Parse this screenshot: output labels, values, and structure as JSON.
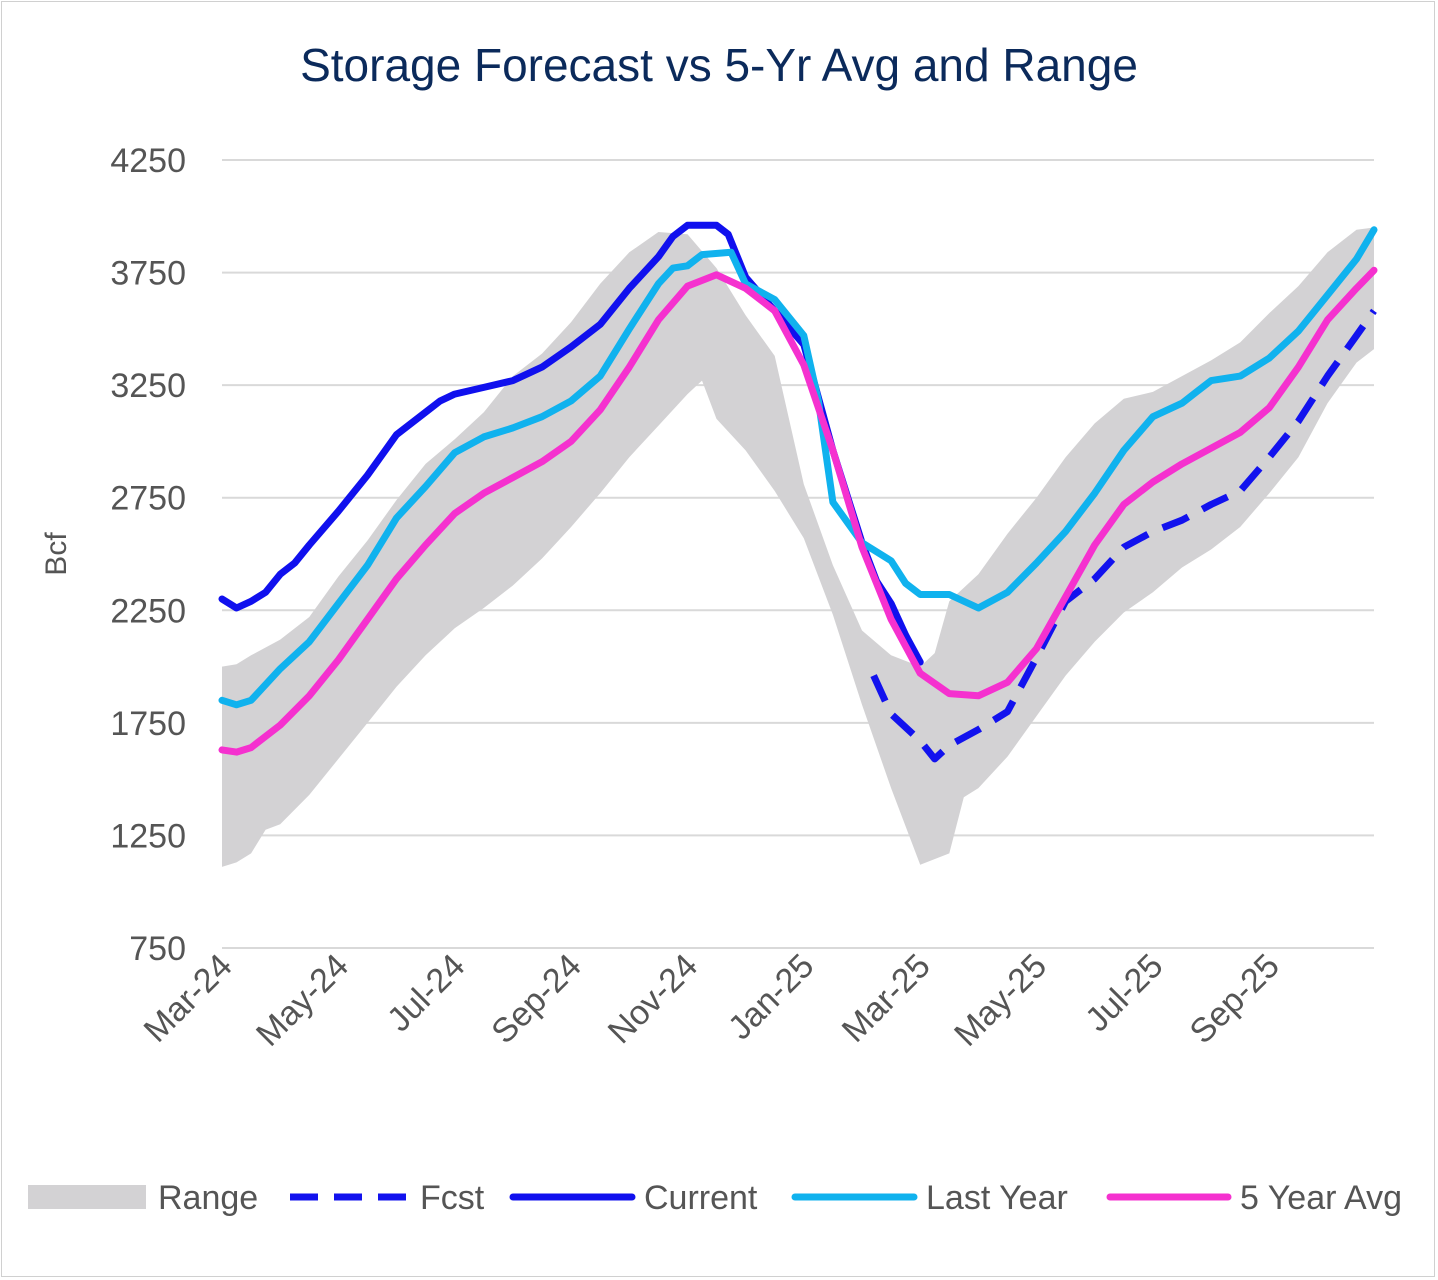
{
  "chart_data": {
    "type": "line",
    "title": "Storage Forecast vs 5-Yr Avg and Range",
    "xlabel": "",
    "ylabel": "Bcf",
    "ylim": [
      750,
      4250
    ],
    "yticks": [
      4250,
      3750,
      3250,
      2750,
      2250,
      1750,
      1250,
      750
    ],
    "x_range": [
      0,
      19.8
    ],
    "xticks": [
      {
        "label": "Mar-24",
        "x": 0
      },
      {
        "label": "May-24",
        "x": 2
      },
      {
        "label": "Jul-24",
        "x": 4
      },
      {
        "label": "Sep-24",
        "x": 6
      },
      {
        "label": "Nov-24",
        "x": 8
      },
      {
        "label": "Jan-25",
        "x": 10
      },
      {
        "label": "Mar-25",
        "x": 12
      },
      {
        "label": "May-25",
        "x": 14
      },
      {
        "label": "Jul-25",
        "x": 16
      },
      {
        "label": "Sep-25",
        "x": 18
      }
    ],
    "grid": true,
    "legend_position": "bottom",
    "range": {
      "name": "Range",
      "color": "#d3d2d4",
      "upper": [
        [
          0,
          2000
        ],
        [
          0.25,
          2010
        ],
        [
          0.5,
          2050
        ],
        [
          1,
          2120
        ],
        [
          1.5,
          2220
        ],
        [
          2,
          2400
        ],
        [
          2.5,
          2560
        ],
        [
          3,
          2740
        ],
        [
          3.5,
          2900
        ],
        [
          4,
          3010
        ],
        [
          4.5,
          3130
        ],
        [
          5,
          3290
        ],
        [
          5.5,
          3390
        ],
        [
          6,
          3530
        ],
        [
          6.5,
          3700
        ],
        [
          7,
          3840
        ],
        [
          7.5,
          3930
        ],
        [
          8,
          3920
        ],
        [
          8.5,
          3770
        ],
        [
          9,
          3560
        ],
        [
          9.5,
          3380
        ],
        [
          10,
          2810
        ],
        [
          10.5,
          2450
        ],
        [
          11,
          2160
        ],
        [
          11.5,
          2050
        ],
        [
          12,
          2000
        ],
        [
          12.25,
          2060
        ],
        [
          12.5,
          2290
        ],
        [
          13,
          2410
        ],
        [
          13.5,
          2590
        ],
        [
          14,
          2750
        ],
        [
          14.5,
          2930
        ],
        [
          15,
          3080
        ],
        [
          15.5,
          3190
        ],
        [
          16,
          3220
        ],
        [
          16.5,
          3290
        ],
        [
          17,
          3360
        ],
        [
          17.5,
          3440
        ],
        [
          18,
          3570
        ],
        [
          18.5,
          3690
        ],
        [
          19,
          3840
        ],
        [
          19.5,
          3940
        ],
        [
          19.8,
          3950
        ]
      ],
      "lower": [
        [
          0,
          1110
        ],
        [
          0.25,
          1130
        ],
        [
          0.5,
          1170
        ],
        [
          0.75,
          1275
        ],
        [
          1,
          1300
        ],
        [
          1.5,
          1430
        ],
        [
          2,
          1590
        ],
        [
          2.5,
          1750
        ],
        [
          3,
          1910
        ],
        [
          3.5,
          2050
        ],
        [
          4,
          2170
        ],
        [
          4.5,
          2260
        ],
        [
          5,
          2360
        ],
        [
          5.5,
          2480
        ],
        [
          6,
          2620
        ],
        [
          6.5,
          2770
        ],
        [
          7,
          2930
        ],
        [
          7.5,
          3070
        ],
        [
          8,
          3210
        ],
        [
          8.25,
          3270
        ],
        [
          8.5,
          3100
        ],
        [
          9,
          2960
        ],
        [
          9.5,
          2780
        ],
        [
          10,
          2570
        ],
        [
          10.5,
          2230
        ],
        [
          11,
          1830
        ],
        [
          11.5,
          1460
        ],
        [
          12,
          1120
        ],
        [
          12.5,
          1170
        ],
        [
          12.75,
          1420
        ],
        [
          13,
          1460
        ],
        [
          13.5,
          1600
        ],
        [
          14,
          1780
        ],
        [
          14.5,
          1960
        ],
        [
          15,
          2110
        ],
        [
          15.5,
          2240
        ],
        [
          16,
          2330
        ],
        [
          16.5,
          2440
        ],
        [
          17,
          2520
        ],
        [
          17.5,
          2620
        ],
        [
          18,
          2770
        ],
        [
          18.5,
          2930
        ],
        [
          19,
          3170
        ],
        [
          19.5,
          3350
        ],
        [
          19.8,
          3410
        ]
      ]
    },
    "series": [
      {
        "name": "Fcst",
        "color": "#1212ee",
        "style": "dashed",
        "points": [
          [
            11.2,
            1960
          ],
          [
            11.5,
            1790
          ],
          [
            12,
            1670
          ],
          [
            12.25,
            1590
          ],
          [
            12.5,
            1650
          ],
          [
            13,
            1720
          ],
          [
            13.5,
            1800
          ],
          [
            14,
            2040
          ],
          [
            14.5,
            2290
          ],
          [
            15,
            2390
          ],
          [
            15.5,
            2530
          ],
          [
            16,
            2600
          ],
          [
            16.5,
            2650
          ],
          [
            17,
            2720
          ],
          [
            17.5,
            2780
          ],
          [
            18,
            2930
          ],
          [
            18.5,
            3090
          ],
          [
            19,
            3290
          ],
          [
            19.5,
            3470
          ],
          [
            19.8,
            3580
          ]
        ]
      },
      {
        "name": "Current",
        "color": "#1010ee",
        "style": "solid",
        "points": [
          [
            0,
            2300
          ],
          [
            0.25,
            2260
          ],
          [
            0.5,
            2290
          ],
          [
            0.75,
            2330
          ],
          [
            1,
            2410
          ],
          [
            1.25,
            2460
          ],
          [
            1.5,
            2540
          ],
          [
            2,
            2690
          ],
          [
            2.5,
            2850
          ],
          [
            3,
            3030
          ],
          [
            3.5,
            3130
          ],
          [
            3.75,
            3180
          ],
          [
            4,
            3210
          ],
          [
            4.5,
            3240
          ],
          [
            5,
            3270
          ],
          [
            5.5,
            3330
          ],
          [
            6,
            3420
          ],
          [
            6.5,
            3520
          ],
          [
            7,
            3680
          ],
          [
            7.5,
            3820
          ],
          [
            7.75,
            3910
          ],
          [
            8,
            3960
          ],
          [
            8.5,
            3960
          ],
          [
            8.7,
            3920
          ],
          [
            9,
            3730
          ],
          [
            9.5,
            3580
          ],
          [
            10,
            3430
          ],
          [
            10.5,
            2960
          ],
          [
            11,
            2550
          ],
          [
            11.25,
            2380
          ],
          [
            11.5,
            2280
          ],
          [
            11.75,
            2140
          ],
          [
            12,
            2020
          ]
        ]
      },
      {
        "name": "Last Year",
        "color": "#10b2ee",
        "style": "solid",
        "points": [
          [
            0,
            1850
          ],
          [
            0.25,
            1830
          ],
          [
            0.5,
            1850
          ],
          [
            1,
            1990
          ],
          [
            1.5,
            2110
          ],
          [
            2,
            2280
          ],
          [
            2.5,
            2450
          ],
          [
            3,
            2660
          ],
          [
            3.5,
            2800
          ],
          [
            4,
            2950
          ],
          [
            4.5,
            3020
          ],
          [
            5,
            3060
          ],
          [
            5.5,
            3110
          ],
          [
            6,
            3180
          ],
          [
            6.5,
            3290
          ],
          [
            7,
            3500
          ],
          [
            7.5,
            3700
          ],
          [
            7.75,
            3770
          ],
          [
            8,
            3780
          ],
          [
            8.25,
            3830
          ],
          [
            8.75,
            3840
          ],
          [
            9,
            3700
          ],
          [
            9.5,
            3630
          ],
          [
            10,
            3470
          ],
          [
            10.25,
            3180
          ],
          [
            10.5,
            2730
          ],
          [
            11,
            2550
          ],
          [
            11.5,
            2470
          ],
          [
            11.75,
            2370
          ],
          [
            12,
            2320
          ],
          [
            12.5,
            2320
          ],
          [
            13,
            2260
          ],
          [
            13.5,
            2330
          ],
          [
            14,
            2460
          ],
          [
            14.5,
            2600
          ],
          [
            15,
            2770
          ],
          [
            15.5,
            2960
          ],
          [
            16,
            3110
          ],
          [
            16.5,
            3170
          ],
          [
            16.75,
            3220
          ],
          [
            17,
            3270
          ],
          [
            17.5,
            3290
          ],
          [
            18,
            3370
          ],
          [
            18.5,
            3490
          ],
          [
            19,
            3650
          ],
          [
            19.5,
            3810
          ],
          [
            19.8,
            3940
          ]
        ]
      },
      {
        "name": "5 Year Avg",
        "color": "#f531cf",
        "style": "solid",
        "points": [
          [
            0,
            1630
          ],
          [
            0.25,
            1620
          ],
          [
            0.5,
            1640
          ],
          [
            1,
            1740
          ],
          [
            1.5,
            1870
          ],
          [
            2,
            2030
          ],
          [
            2.5,
            2210
          ],
          [
            3,
            2390
          ],
          [
            3.5,
            2540
          ],
          [
            4,
            2680
          ],
          [
            4.5,
            2770
          ],
          [
            5,
            2840
          ],
          [
            5.5,
            2910
          ],
          [
            6,
            3000
          ],
          [
            6.5,
            3140
          ],
          [
            7,
            3330
          ],
          [
            7.5,
            3540
          ],
          [
            8,
            3690
          ],
          [
            8.5,
            3740
          ],
          [
            9,
            3680
          ],
          [
            9.5,
            3580
          ],
          [
            10,
            3340
          ],
          [
            10.5,
            2960
          ],
          [
            11,
            2530
          ],
          [
            11.5,
            2210
          ],
          [
            12,
            1970
          ],
          [
            12.5,
            1880
          ],
          [
            13,
            1870
          ],
          [
            13.5,
            1930
          ],
          [
            14,
            2080
          ],
          [
            14.5,
            2310
          ],
          [
            15,
            2540
          ],
          [
            15.5,
            2720
          ],
          [
            16,
            2820
          ],
          [
            16.5,
            2900
          ],
          [
            17,
            2970
          ],
          [
            17.5,
            3040
          ],
          [
            18,
            3150
          ],
          [
            18.5,
            3330
          ],
          [
            19,
            3540
          ],
          [
            19.5,
            3680
          ],
          [
            19.8,
            3760
          ]
        ]
      }
    ]
  }
}
